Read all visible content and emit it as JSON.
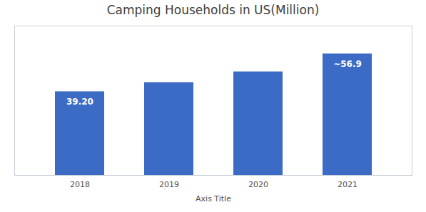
{
  "chart_data": {
    "type": "bar",
    "title": "Camping Households in US(Million)",
    "categories": [
      "2018",
      "2019",
      "2020",
      "2021"
    ],
    "values": [
      39.2,
      43.5,
      48.5,
      56.9
    ],
    "value_labels": [
      "39.20",
      null,
      null,
      "~56.9"
    ],
    "data_labels": true,
    "color": "#3B6BC4",
    "xlabel": "Axis Title",
    "ylim": [
      0,
      70
    ],
    "tick_labels": "x",
    "grid": false
  }
}
